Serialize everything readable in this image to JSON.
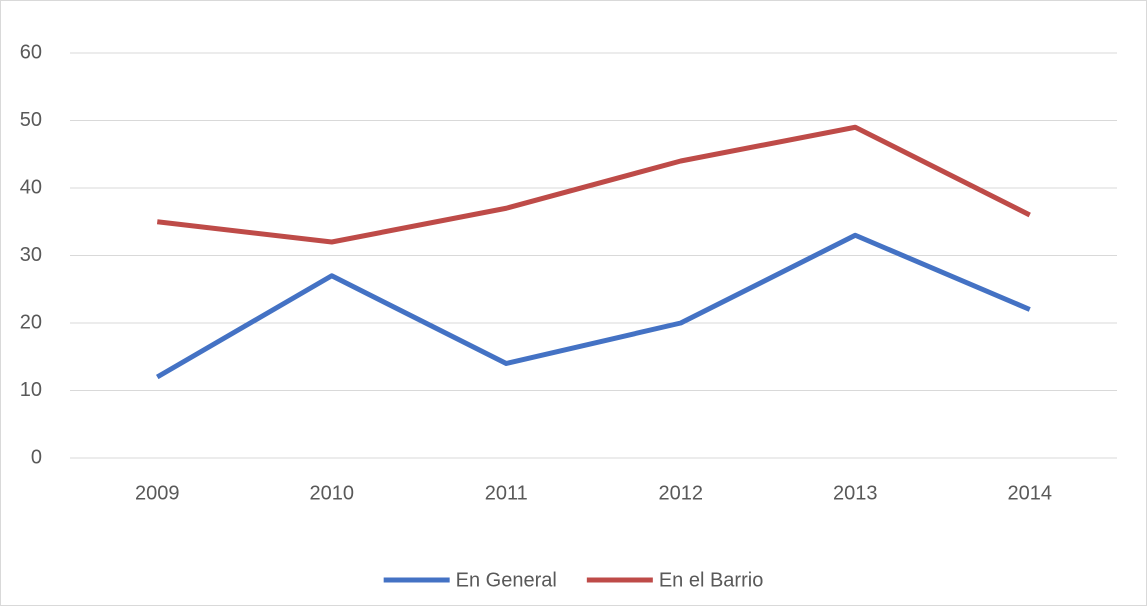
{
  "chart_data": {
    "type": "line",
    "categories": [
      "2009",
      "2010",
      "2011",
      "2012",
      "2013",
      "2014"
    ],
    "series": [
      {
        "name": "En General",
        "color": "#4472c4",
        "values": [
          12,
          27,
          14,
          20,
          33,
          22
        ]
      },
      {
        "name": "En el Barrio",
        "color": "#be4b48",
        "values": [
          35,
          32,
          37,
          44,
          49,
          36
        ]
      }
    ],
    "ylim": [
      0,
      60
    ],
    "yticks": [
      0,
      10,
      20,
      30,
      40,
      50,
      60
    ],
    "grid": true,
    "legend": "bottom"
  }
}
